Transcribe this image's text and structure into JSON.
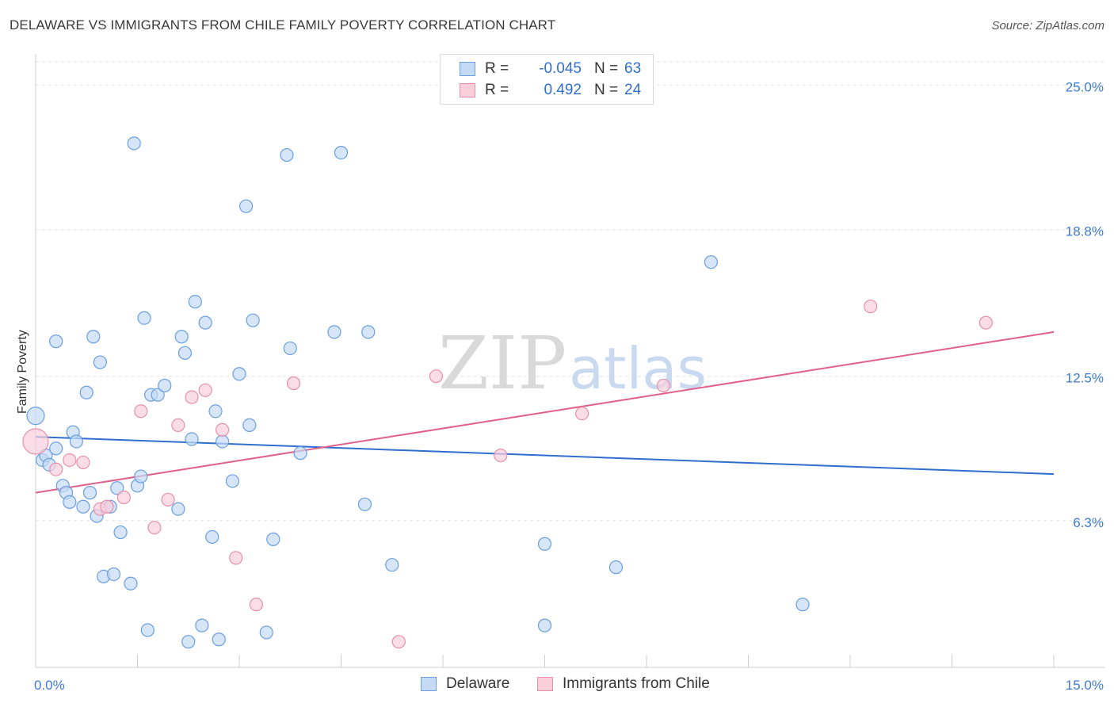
{
  "title": "DELAWARE VS IMMIGRANTS FROM CHILE FAMILY POVERTY CORRELATION CHART",
  "source": "Source: ZipAtlas.com",
  "watermark": {
    "zip": "ZIP",
    "atlas": "atlas"
  },
  "legend_top": [
    {
      "r_label": "R =",
      "r_value": "-0.045",
      "n_label": "N =",
      "n_value": "63"
    },
    {
      "r_label": "R =",
      "r_value": "0.492",
      "n_label": "N =",
      "n_value": "24"
    }
  ],
  "chart_data": {
    "type": "scatter",
    "title": "DELAWARE VS IMMIGRANTS FROM CHILE FAMILY POVERTY CORRELATION CHART",
    "xlabel": "",
    "ylabel": "Family Poverty",
    "xlim": [
      0,
      15
    ],
    "ylim": [
      0,
      26
    ],
    "x_tick_labels": [
      "0.0%",
      "15.0%"
    ],
    "y_tick_labels": [
      {
        "value": 25.0,
        "label": "25.0%"
      },
      {
        "value": 18.8,
        "label": "18.8%"
      },
      {
        "value": 12.5,
        "label": "12.5%"
      },
      {
        "value": 6.3,
        "label": "6.3%"
      }
    ],
    "legend_position": "top-center",
    "series": [
      {
        "name": "Delaware",
        "color": "#6a9fe0",
        "fill": "#c5daf5",
        "trend": {
          "x": [
            0,
            15
          ],
          "y": [
            9.9,
            8.3
          ]
        },
        "points": [
          [
            0.0,
            10.8
          ],
          [
            0.1,
            8.9
          ],
          [
            0.15,
            9.1
          ],
          [
            0.2,
            8.7
          ],
          [
            0.3,
            14.0
          ],
          [
            0.3,
            9.4
          ],
          [
            0.4,
            7.8
          ],
          [
            0.45,
            7.5
          ],
          [
            0.5,
            7.1
          ],
          [
            0.55,
            10.1
          ],
          [
            0.6,
            9.7
          ],
          [
            0.7,
            6.9
          ],
          [
            0.75,
            11.8
          ],
          [
            0.8,
            7.5
          ],
          [
            0.85,
            14.2
          ],
          [
            0.9,
            6.5
          ],
          [
            0.95,
            13.1
          ],
          [
            1.0,
            3.9
          ],
          [
            1.1,
            6.9
          ],
          [
            1.15,
            4.0
          ],
          [
            1.2,
            7.7
          ],
          [
            1.25,
            5.8
          ],
          [
            1.4,
            3.6
          ],
          [
            1.45,
            22.5
          ],
          [
            1.5,
            7.8
          ],
          [
            1.55,
            8.2
          ],
          [
            1.6,
            15.0
          ],
          [
            1.65,
            1.6
          ],
          [
            1.7,
            11.7
          ],
          [
            1.8,
            11.7
          ],
          [
            1.9,
            12.1
          ],
          [
            2.1,
            6.8
          ],
          [
            2.15,
            14.2
          ],
          [
            2.2,
            13.5
          ],
          [
            2.25,
            1.1
          ],
          [
            2.3,
            9.8
          ],
          [
            2.35,
            15.7
          ],
          [
            2.45,
            1.8
          ],
          [
            2.5,
            14.8
          ],
          [
            2.6,
            5.6
          ],
          [
            2.65,
            11.0
          ],
          [
            2.7,
            1.2
          ],
          [
            2.75,
            9.7
          ],
          [
            2.9,
            8.0
          ],
          [
            3.0,
            12.6
          ],
          [
            3.1,
            19.8
          ],
          [
            3.15,
            10.4
          ],
          [
            3.2,
            14.9
          ],
          [
            3.4,
            1.5
          ],
          [
            3.5,
            5.5
          ],
          [
            3.7,
            22.0
          ],
          [
            3.75,
            13.7
          ],
          [
            3.9,
            9.2
          ],
          [
            4.4,
            14.4
          ],
          [
            4.5,
            22.1
          ],
          [
            4.9,
            14.4
          ],
          [
            4.85,
            7.0
          ],
          [
            5.25,
            4.4
          ],
          [
            7.5,
            5.3
          ],
          [
            7.5,
            1.8
          ],
          [
            8.55,
            4.3
          ],
          [
            9.95,
            17.4
          ],
          [
            11.3,
            2.7
          ]
        ]
      },
      {
        "name": "Immigrants from Chile",
        "color": "#e890aa",
        "fill": "#f8cfdb",
        "trend": {
          "x": [
            0,
            15
          ],
          "y": [
            7.5,
            14.4
          ]
        },
        "points": [
          [
            0.0,
            9.7
          ],
          [
            0.3,
            8.5
          ],
          [
            0.5,
            8.9
          ],
          [
            0.7,
            8.8
          ],
          [
            0.95,
            6.8
          ],
          [
            1.05,
            6.9
          ],
          [
            1.3,
            7.3
          ],
          [
            1.55,
            11.0
          ],
          [
            1.75,
            6.0
          ],
          [
            1.95,
            7.2
          ],
          [
            2.1,
            10.4
          ],
          [
            2.3,
            11.6
          ],
          [
            2.5,
            11.9
          ],
          [
            2.75,
            10.2
          ],
          [
            2.95,
            4.7
          ],
          [
            3.25,
            2.7
          ],
          [
            3.8,
            12.2
          ],
          [
            5.35,
            1.1
          ],
          [
            5.9,
            12.5
          ],
          [
            6.85,
            9.1
          ],
          [
            8.05,
            10.9
          ],
          [
            9.25,
            12.1
          ],
          [
            12.3,
            15.5
          ],
          [
            14.0,
            14.8
          ]
        ]
      }
    ]
  }
}
